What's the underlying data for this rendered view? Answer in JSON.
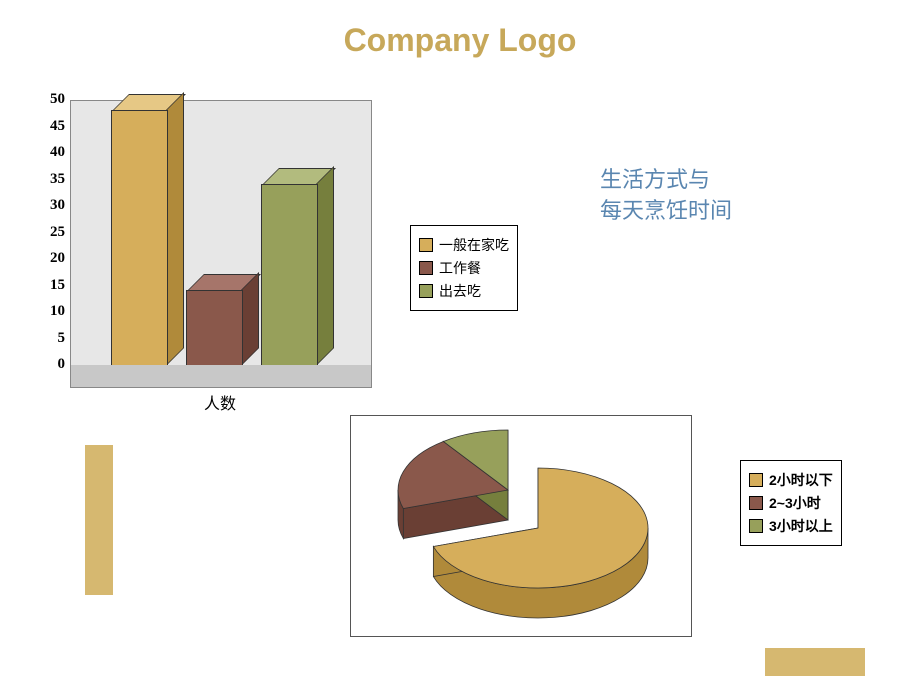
{
  "title": "Company Logo",
  "subtitle_line1": "生活方式与",
  "subtitle_line2": "每天烹饪时间",
  "bar_chart": {
    "type": "bar",
    "x_label": "人数",
    "ylim": [
      0,
      50
    ],
    "ytick_step": 5,
    "y_ticks": [
      0,
      5,
      10,
      15,
      20,
      25,
      30,
      35,
      40,
      45,
      50
    ],
    "plot_bg": "#e7e7e7",
    "floor_bg": "#c8c8c8",
    "bars": [
      {
        "label": "一般在家吃",
        "value": 48,
        "color_front": "#d6ae5b",
        "color_top": "#e6c885",
        "color_side": "#b08a3a"
      },
      {
        "label": "工作餐",
        "value": 14,
        "color_front": "#8a584b",
        "color_top": "#a6756a",
        "color_side": "#6a3f34"
      },
      {
        "label": "出去吃",
        "value": 34,
        "color_front": "#97a05b",
        "color_top": "#b2bb7e",
        "color_side": "#767f3d"
      }
    ],
    "label_fontsize": 15,
    "label_fontweight": "bold"
  },
  "bar_legend": {
    "items": [
      {
        "label": "一般在家吃",
        "swatch": "#d6ae5b"
      },
      {
        "label": "工作餐",
        "swatch": "#8a584b"
      },
      {
        "label": "出去吃",
        "swatch": "#97a05b"
      }
    ]
  },
  "pie_chart": {
    "type": "pie",
    "slices": [
      {
        "label": "2小时以下",
        "value": 70,
        "color": "#d6ae5b",
        "color_dark": "#b08a3a",
        "exploded": true
      },
      {
        "label": "2~3小时",
        "value": 20,
        "color": "#8a584b",
        "color_dark": "#6a3f34",
        "exploded": false
      },
      {
        "label": "3小时以上",
        "value": 10,
        "color": "#97a05b",
        "color_dark": "#767f3d",
        "exploded": false
      }
    ],
    "background_color": "#ffffff",
    "border_color": "#555555"
  },
  "pie_legend": {
    "items": [
      {
        "label": "2小时以下",
        "swatch": "#d6ae5b"
      },
      {
        "label": "2~3小时",
        "swatch": "#8a584b"
      },
      {
        "label": "3小时以上",
        "swatch": "#97a05b"
      }
    ]
  },
  "decor": {
    "color": "#d6b870"
  }
}
